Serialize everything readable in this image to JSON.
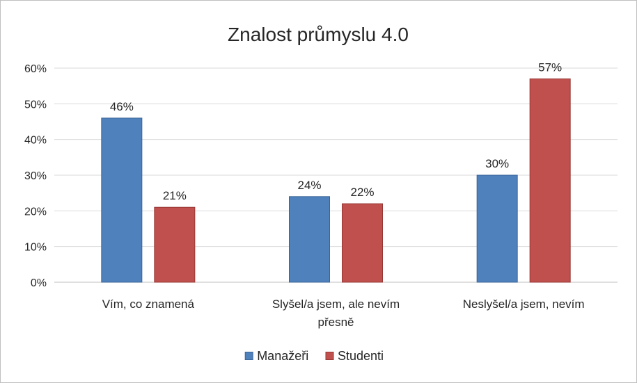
{
  "chart_data": {
    "type": "bar",
    "title": "Znalost průmyslu 4.0",
    "xlabel": "",
    "ylabel": "",
    "ylim": [
      0,
      60
    ],
    "yticks": [
      "0%",
      "10%",
      "20%",
      "30%",
      "40%",
      "50%",
      "60%"
    ],
    "ytick_values": [
      0,
      10,
      20,
      30,
      40,
      50,
      60
    ],
    "categories": [
      [
        "Vím, co znamená"
      ],
      [
        "Slyšel/a jsem, ale nevím",
        "přesně"
      ],
      [
        "Neslyšel/a jsem, nevím"
      ]
    ],
    "series": [
      {
        "name": "Manažeři",
        "values": [
          46,
          24,
          30
        ],
        "labels": [
          "46%",
          "24%",
          "30%"
        ],
        "color": "#4f81bd",
        "stroke": "#3a6496"
      },
      {
        "name": "Studenti",
        "values": [
          21,
          22,
          57
        ],
        "labels": [
          "21%",
          "22%",
          "57%"
        ],
        "color": "#c0504d",
        "stroke": "#953735"
      }
    ],
    "grid": true,
    "legend": "bottom"
  }
}
